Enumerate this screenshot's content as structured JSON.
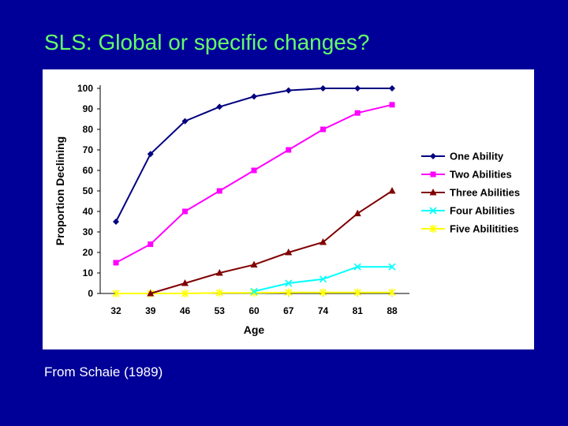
{
  "slide": {
    "title": "SLS:  Global or specific changes?",
    "caption": "From Schaie (1989)"
  },
  "chart_data": {
    "type": "line",
    "title": "",
    "xlabel": "Age",
    "ylabel": "Proportion Declining",
    "categories": [
      "32",
      "39",
      "46",
      "53",
      "60",
      "67",
      "74",
      "81",
      "88"
    ],
    "ylim": [
      0,
      100
    ],
    "yticks": [
      0,
      10,
      20,
      30,
      40,
      50,
      60,
      70,
      80,
      90,
      100
    ],
    "grid": false,
    "legend_position": "right",
    "series": [
      {
        "name": "One Ability",
        "color": "#000080",
        "marker": "diamond",
        "values": [
          35,
          68,
          84,
          91,
          96,
          99,
          100,
          100,
          100
        ]
      },
      {
        "name": "Two Abilities",
        "color": "#ff00ff",
        "marker": "square",
        "values": [
          15,
          24,
          40,
          50,
          60,
          70,
          80,
          88,
          92
        ]
      },
      {
        "name": "Three Abilities",
        "color": "#800000",
        "marker": "triangle",
        "values": [
          null,
          0,
          5,
          10,
          14,
          20,
          25,
          39,
          50
        ]
      },
      {
        "name": "Four Abilities",
        "color": "#00ffff",
        "marker": "x",
        "values": [
          null,
          null,
          null,
          null,
          1,
          5,
          7,
          13,
          13
        ]
      },
      {
        "name": "Five Abilitities",
        "color": "#ffff00",
        "marker": "star",
        "values": [
          0,
          0,
          0,
          0.3,
          0.3,
          0.5,
          0.5,
          0.5,
          0.5
        ]
      }
    ]
  }
}
